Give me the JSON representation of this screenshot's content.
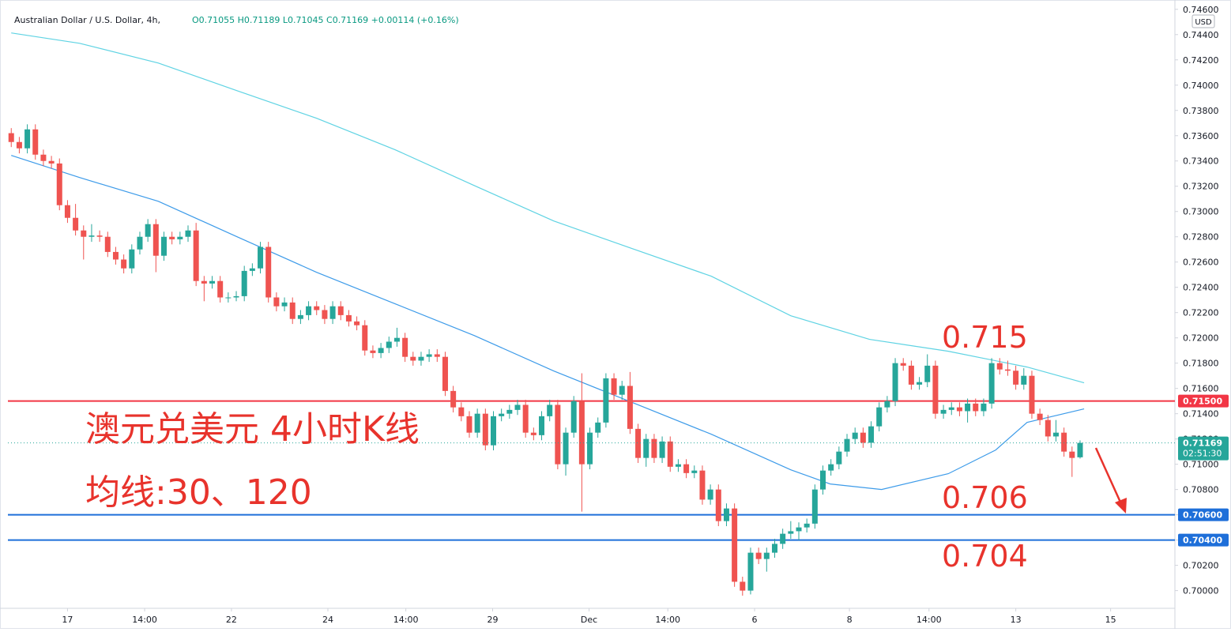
{
  "chart_data": {
    "type": "candlestick",
    "title": "Australian Dollar / U.S. Dollar, 4h,",
    "ohlc_text": "O0.71055 H0.71189 L0.71045 C0.71169 +0.00114 (+0.16%)",
    "currency": "USD",
    "countdown": "02:51:30",
    "up_color": "#26a69a",
    "down_color": "#ef5350",
    "ylim": [
      0.6986,
      0.7463
    ],
    "xlim": [
      -1.4,
      144.8
    ],
    "yticks": [
      {
        "value": 0.7,
        "label": "0.70000"
      },
      {
        "value": 0.702,
        "label": "0.70200"
      },
      {
        "value": 0.704,
        "label": "0.70400"
      },
      {
        "value": 0.706,
        "label": "0.70600"
      },
      {
        "value": 0.708,
        "label": "0.70800"
      },
      {
        "value": 0.71,
        "label": "0.71000"
      },
      {
        "value": 0.712,
        "label": "0.71200"
      },
      {
        "value": 0.714,
        "label": "0.71400"
      },
      {
        "value": 0.716,
        "label": "0.71600"
      },
      {
        "value": 0.718,
        "label": "0.71800"
      },
      {
        "value": 0.72,
        "label": "0.72000"
      },
      {
        "value": 0.722,
        "label": "0.72200"
      },
      {
        "value": 0.724,
        "label": "0.72400"
      },
      {
        "value": 0.726,
        "label": "0.72600"
      },
      {
        "value": 0.728,
        "label": "0.72800"
      },
      {
        "value": 0.73,
        "label": "0.73000"
      },
      {
        "value": 0.732,
        "label": "0.73200"
      },
      {
        "value": 0.734,
        "label": "0.73400"
      },
      {
        "value": 0.736,
        "label": "0.73600"
      },
      {
        "value": 0.738,
        "label": "0.73800"
      },
      {
        "value": 0.74,
        "label": "0.74000"
      },
      {
        "value": 0.742,
        "label": "0.74200"
      },
      {
        "value": 0.744,
        "label": "0.74400"
      },
      {
        "value": 0.746,
        "label": "0.74600"
      }
    ],
    "xticks": [
      {
        "value": 7.0,
        "label": "17"
      },
      {
        "value": 16.6,
        "label": "14:00"
      },
      {
        "value": 27.4,
        "label": "22"
      },
      {
        "value": 39.4,
        "label": "24"
      },
      {
        "value": 49.1,
        "label": "14:00"
      },
      {
        "value": 59.9,
        "label": "29"
      },
      {
        "value": 71.9,
        "label": "Dec"
      },
      {
        "value": 81.7,
        "label": "14:00"
      },
      {
        "value": 92.5,
        "label": "6"
      },
      {
        "value": 104.3,
        "label": "8"
      },
      {
        "value": 114.2,
        "label": "14:00"
      },
      {
        "value": 125.0,
        "label": "13"
      },
      {
        "value": 136.8,
        "label": "15"
      }
    ],
    "candles": [
      [
        0.7362,
        0.7366,
        0.7351,
        0.7355
      ],
      [
        0.7355,
        0.7359,
        0.7346,
        0.735
      ],
      [
        0.735,
        0.7369,
        0.7346,
        0.7365
      ],
      [
        0.7365,
        0.7369,
        0.7341,
        0.7345
      ],
      [
        0.7345,
        0.7349,
        0.7336,
        0.734
      ],
      [
        0.734,
        0.7344,
        0.7334,
        0.7338
      ],
      [
        0.7338,
        0.7342,
        0.7301,
        0.7305
      ],
      [
        0.7305,
        0.7309,
        0.7291,
        0.7295
      ],
      [
        0.7295,
        0.7306,
        0.7281,
        0.7285
      ],
      [
        0.7285,
        0.7289,
        0.7262,
        0.728
      ],
      [
        0.728,
        0.729,
        0.7276,
        0.7281
      ],
      [
        0.7281,
        0.7285,
        0.7276,
        0.728
      ],
      [
        0.728,
        0.7284,
        0.7264,
        0.7268
      ],
      [
        0.7268,
        0.7272,
        0.7258,
        0.7262
      ],
      [
        0.7262,
        0.7266,
        0.7251,
        0.7255
      ],
      [
        0.7255,
        0.7274,
        0.7251,
        0.727
      ],
      [
        0.727,
        0.7284,
        0.7266,
        0.728
      ],
      [
        0.728,
        0.7294,
        0.7276,
        0.729
      ],
      [
        0.729,
        0.7294,
        0.7252,
        0.7265
      ],
      [
        0.7265,
        0.7284,
        0.7261,
        0.728
      ],
      [
        0.728,
        0.7284,
        0.7274,
        0.7278
      ],
      [
        0.7278,
        0.7284,
        0.7274,
        0.728
      ],
      [
        0.728,
        0.7289,
        0.7276,
        0.7285
      ],
      [
        0.7285,
        0.7291,
        0.7241,
        0.7245
      ],
      [
        0.7245,
        0.7249,
        0.7229,
        0.7243
      ],
      [
        0.7243,
        0.7249,
        0.7239,
        0.7245
      ],
      [
        0.7245,
        0.7249,
        0.7228,
        0.7232
      ],
      [
        0.7232,
        0.7236,
        0.7228,
        0.7232
      ],
      [
        0.7232,
        0.7237,
        0.7229,
        0.7233
      ],
      [
        0.7233,
        0.7257,
        0.7229,
        0.7253
      ],
      [
        0.7253,
        0.7259,
        0.7249,
        0.7255
      ],
      [
        0.7255,
        0.7276,
        0.7251,
        0.7272
      ],
      [
        0.7272,
        0.7276,
        0.7228,
        0.7232
      ],
      [
        0.7232,
        0.7236,
        0.7221,
        0.7225
      ],
      [
        0.7225,
        0.7232,
        0.7221,
        0.7228
      ],
      [
        0.7228,
        0.7232,
        0.7211,
        0.7215
      ],
      [
        0.7215,
        0.7222,
        0.7211,
        0.7218
      ],
      [
        0.7218,
        0.7229,
        0.7214,
        0.7225
      ],
      [
        0.7225,
        0.7229,
        0.7218,
        0.7222
      ],
      [
        0.7222,
        0.7226,
        0.7211,
        0.7215
      ],
      [
        0.7215,
        0.7229,
        0.7211,
        0.7225
      ],
      [
        0.7225,
        0.7229,
        0.7214,
        0.7218
      ],
      [
        0.7218,
        0.7222,
        0.7209,
        0.7213
      ],
      [
        0.7213,
        0.7217,
        0.7206,
        0.721
      ],
      [
        0.721,
        0.7214,
        0.7186,
        0.719
      ],
      [
        0.719,
        0.7194,
        0.7184,
        0.7188
      ],
      [
        0.7188,
        0.7196,
        0.7184,
        0.7192
      ],
      [
        0.7192,
        0.7201,
        0.7188,
        0.7197
      ],
      [
        0.7197,
        0.7208,
        0.7193,
        0.72
      ],
      [
        0.72,
        0.7204,
        0.7181,
        0.7185
      ],
      [
        0.7185,
        0.7189,
        0.7178,
        0.7182
      ],
      [
        0.7182,
        0.7189,
        0.7178,
        0.7185
      ],
      [
        0.7185,
        0.7191,
        0.7181,
        0.7187
      ],
      [
        0.7187,
        0.7191,
        0.7181,
        0.7185
      ],
      [
        0.7185,
        0.7189,
        0.7154,
        0.7158
      ],
      [
        0.7158,
        0.7162,
        0.7141,
        0.7145
      ],
      [
        0.7145,
        0.7149,
        0.7134,
        0.7138
      ],
      [
        0.7138,
        0.7142,
        0.7121,
        0.7125
      ],
      [
        0.7125,
        0.7144,
        0.7121,
        0.714
      ],
      [
        0.714,
        0.7144,
        0.7111,
        0.7115
      ],
      [
        0.7115,
        0.7142,
        0.7111,
        0.7138
      ],
      [
        0.7138,
        0.7144,
        0.7134,
        0.714
      ],
      [
        0.714,
        0.7147,
        0.7136,
        0.7143
      ],
      [
        0.7143,
        0.7151,
        0.7139,
        0.7147
      ],
      [
        0.7147,
        0.7151,
        0.7121,
        0.7125
      ],
      [
        0.7125,
        0.7129,
        0.7119,
        0.7123
      ],
      [
        0.7123,
        0.7142,
        0.7119,
        0.7138
      ],
      [
        0.7138,
        0.7151,
        0.7134,
        0.7147
      ],
      [
        0.7147,
        0.7151,
        0.7096,
        0.71
      ],
      [
        0.71,
        0.7129,
        0.7091,
        0.7125
      ],
      [
        0.7125,
        0.7154,
        0.7121,
        0.715
      ],
      [
        0.715,
        0.7172,
        0.70625,
        0.71
      ],
      [
        0.71,
        0.7129,
        0.7096,
        0.7125
      ],
      [
        0.7125,
        0.7137,
        0.7121,
        0.7133
      ],
      [
        0.7133,
        0.7172,
        0.7129,
        0.7168
      ],
      [
        0.7168,
        0.7172,
        0.7151,
        0.7155
      ],
      [
        0.7155,
        0.7166,
        0.7151,
        0.7162
      ],
      [
        0.7162,
        0.7173,
        0.7124,
        0.7128
      ],
      [
        0.7128,
        0.7132,
        0.7101,
        0.7105
      ],
      [
        0.7105,
        0.7124,
        0.7098,
        0.712
      ],
      [
        0.712,
        0.7124,
        0.7101,
        0.7105
      ],
      [
        0.7105,
        0.7122,
        0.7101,
        0.7118
      ],
      [
        0.7118,
        0.7122,
        0.7094,
        0.7098
      ],
      [
        0.7098,
        0.7104,
        0.7094,
        0.71
      ],
      [
        0.71,
        0.7104,
        0.7089,
        0.7093
      ],
      [
        0.7093,
        0.7099,
        0.7089,
        0.7095
      ],
      [
        0.7095,
        0.7099,
        0.7068,
        0.7072
      ],
      [
        0.7072,
        0.7084,
        0.7068,
        0.708
      ],
      [
        0.708,
        0.7084,
        0.7051,
        0.7055
      ],
      [
        0.7055,
        0.7069,
        0.7051,
        0.7065
      ],
      [
        0.7065,
        0.7069,
        0.7003,
        0.7007
      ],
      [
        0.7007,
        0.7011,
        0.6996,
        0.7
      ],
      [
        0.7,
        0.7034,
        0.6997,
        0.703
      ],
      [
        0.703,
        0.7034,
        0.7021,
        0.7025
      ],
      [
        0.7025,
        0.7034,
        0.7015,
        0.703
      ],
      [
        0.703,
        0.7041,
        0.7026,
        0.7037
      ],
      [
        0.7037,
        0.7049,
        0.7033,
        0.7045
      ],
      [
        0.7045,
        0.7055,
        0.7041,
        0.7047
      ],
      [
        0.7047,
        0.7054,
        0.704,
        0.705
      ],
      [
        0.705,
        0.7057,
        0.7046,
        0.7053
      ],
      [
        0.7053,
        0.7084,
        0.7049,
        0.708
      ],
      [
        0.708,
        0.7099,
        0.7076,
        0.7095
      ],
      [
        0.7095,
        0.7104,
        0.7091,
        0.71
      ],
      [
        0.71,
        0.7114,
        0.7096,
        0.711
      ],
      [
        0.711,
        0.7124,
        0.7106,
        0.712
      ],
      [
        0.712,
        0.7129,
        0.7116,
        0.7125
      ],
      [
        0.7125,
        0.7129,
        0.7113,
        0.7117
      ],
      [
        0.7117,
        0.7134,
        0.7113,
        0.713
      ],
      [
        0.713,
        0.7149,
        0.7126,
        0.7145
      ],
      [
        0.7145,
        0.7154,
        0.7141,
        0.715
      ],
      [
        0.715,
        0.7184,
        0.7146,
        0.718
      ],
      [
        0.718,
        0.7184,
        0.7174,
        0.7178
      ],
      [
        0.7178,
        0.7182,
        0.7159,
        0.7163
      ],
      [
        0.7163,
        0.7169,
        0.7159,
        0.7165
      ],
      [
        0.7165,
        0.7187,
        0.7161,
        0.7178
      ],
      [
        0.7178,
        0.7182,
        0.7136,
        0.714
      ],
      [
        0.714,
        0.7147,
        0.7136,
        0.7143
      ],
      [
        0.7143,
        0.7149,
        0.7139,
        0.7145
      ],
      [
        0.7145,
        0.7149,
        0.7138,
        0.7142
      ],
      [
        0.7142,
        0.7152,
        0.7133,
        0.7148
      ],
      [
        0.7148,
        0.7152,
        0.7138,
        0.7142
      ],
      [
        0.7142,
        0.7152,
        0.7138,
        0.7148
      ],
      [
        0.7148,
        0.7184,
        0.7144,
        0.718
      ],
      [
        0.718,
        0.7184,
        0.7171,
        0.7175
      ],
      [
        0.7175,
        0.7182,
        0.717,
        0.7174
      ],
      [
        0.7174,
        0.7178,
        0.7159,
        0.7163
      ],
      [
        0.7163,
        0.7176,
        0.7159,
        0.717
      ],
      [
        0.717,
        0.7174,
        0.7136,
        0.714
      ],
      [
        0.714,
        0.7144,
        0.7131,
        0.7135
      ],
      [
        0.7135,
        0.7139,
        0.7118,
        0.7122
      ],
      [
        0.7122,
        0.7135,
        0.7118,
        0.7125
      ],
      [
        0.7125,
        0.7129,
        0.7106,
        0.711
      ],
      [
        0.711,
        0.7114,
        0.709,
        0.7105
      ],
      [
        0.71055,
        0.71189,
        0.71045,
        0.71169
      ]
    ],
    "ma_lines": [
      {
        "color": "#5fd3e3",
        "x": [
          0,
          8.5,
          18.3,
          28.1,
          38,
          47.8,
          57.6,
          67.5,
          77.3,
          87.1,
          97,
          106.8,
          116.6,
          126.4,
          133.5
        ],
        "values": [
          0.74413,
          0.74331,
          0.74175,
          0.73956,
          0.73738,
          0.73488,
          0.73206,
          0.72925,
          0.72706,
          0.72488,
          0.72175,
          0.71988,
          0.71894,
          0.71769,
          0.71644
        ]
      },
      {
        "color": "#3d9be9",
        "x": [
          0,
          8.5,
          18.3,
          28.1,
          38,
          47.8,
          57.6,
          67.5,
          77.3,
          87.1,
          97,
          101.9,
          108.3,
          116.6,
          122.5,
          126.4,
          133.5
        ],
        "values": [
          0.73444,
          0.73269,
          0.73081,
          0.728,
          0.72519,
          0.72269,
          0.72019,
          0.71738,
          0.71488,
          0.71238,
          0.70956,
          0.70844,
          0.708,
          0.70925,
          0.71113,
          0.71331,
          0.71438
        ]
      }
    ],
    "levels": [
      {
        "value": 0.715,
        "label": "0.71500",
        "color": "#f23645"
      },
      {
        "value": 0.706,
        "label": "0.70600",
        "color": "#1e6fd9"
      },
      {
        "value": 0.704,
        "label": "0.70400",
        "color": "#1e6fd9"
      }
    ],
    "annotations": [
      "澳元兑美元 4小时K线",
      "均线:30、120",
      "0.715",
      "0.706",
      "0.704"
    ]
  }
}
